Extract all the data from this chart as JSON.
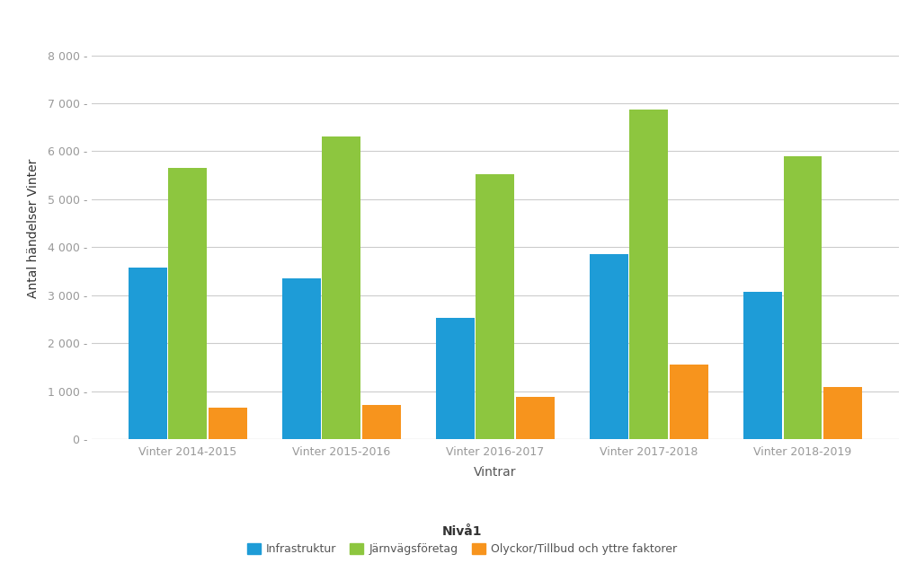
{
  "categories": [
    "Vinter 2014-2015",
    "Vinter 2015-2016",
    "Vinter 2016-2017",
    "Vinter 2017-2018",
    "Vinter 2018-2019"
  ],
  "series": [
    {
      "name": "Infrastruktur",
      "values": [
        3580,
        3350,
        2530,
        3850,
        3070
      ],
      "color": "#1E9CD7"
    },
    {
      "name": "Järnvägsföretag",
      "values": [
        5650,
        6300,
        5520,
        6870,
        5890
      ],
      "color": "#8DC63F"
    },
    {
      "name": "Olyckor/Tillbud och yttre faktorer",
      "values": [
        650,
        720,
        880,
        1560,
        1090
      ],
      "color": "#F7941D"
    }
  ],
  "xlabel": "Vintrar",
  "ylabel": "Antal händelser Vinter",
  "ylim": [
    0,
    8800
  ],
  "yticks": [
    0,
    1000,
    2000,
    3000,
    4000,
    5000,
    6000,
    7000,
    8000
  ],
  "ytick_labels": [
    "0 -",
    "1 000 -",
    "2 000 -",
    "3 000 -",
    "4 000 -",
    "5 000 -",
    "6 000 -",
    "7 000 -",
    "8 000 -"
  ],
  "legend_title": "Nivå1",
  "background_color": "#FFFFFF",
  "plot_bg_color": "#FFFFFF",
  "grid_color": "#CCCCCC",
  "bar_width": 0.25,
  "xlabel_color": "#555555",
  "ylabel_color": "#333333",
  "tick_color": "#999999"
}
